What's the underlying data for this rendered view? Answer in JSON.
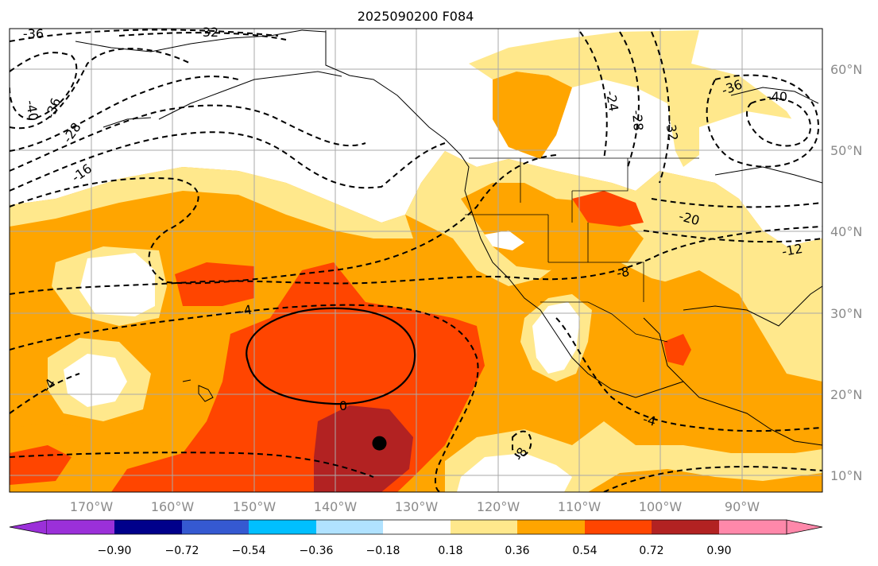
{
  "title": "2025090200 F084",
  "lon_labels": [
    "170°W",
    "160°W",
    "150°W",
    "140°W",
    "130°W",
    "120°W",
    "110°W",
    "100°W",
    "90°W"
  ],
  "lat_labels": [
    "60°N",
    "50°N",
    "40°N",
    "30°N",
    "20°N",
    "10°N"
  ],
  "colorbar": {
    "colors": [
      "#9b30d9",
      "#00008b",
      "#3559d1",
      "#00bfff",
      "#b0e2ff",
      "#ffffff",
      "#ffe88c",
      "#ffa500",
      "#ff4500",
      "#b22222",
      "#ff88aa"
    ],
    "tick_labels": [
      "−0.90",
      "−0.72",
      "−0.54",
      "−0.36",
      "−0.18",
      "0.18",
      "0.36",
      "0.54",
      "0.72",
      "0.90"
    ]
  },
  "contour_labels": [
    "-36",
    "-32",
    "-40",
    "-36",
    "-28",
    "-16",
    "-24",
    "-28",
    "-32",
    "-36",
    "-40",
    "-20",
    "-12",
    "-8",
    "-4",
    "-4",
    "0",
    "-4",
    "-8"
  ],
  "marker": {
    "lon": -134.5,
    "lat": 14.0
  }
}
